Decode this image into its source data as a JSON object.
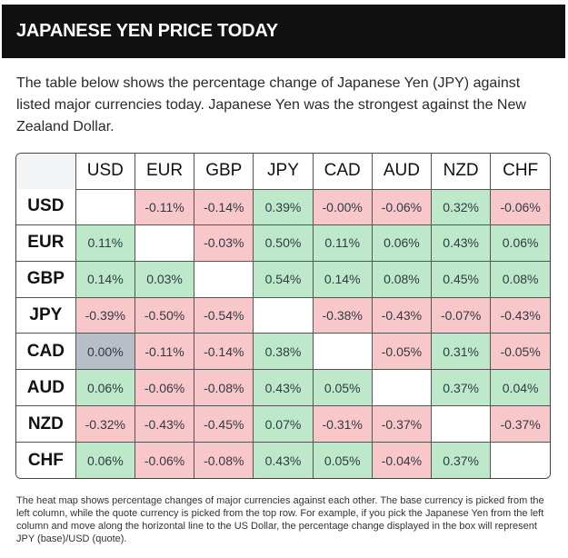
{
  "header": {
    "title": "JAPANESE YEN PRICE TODAY"
  },
  "intro": {
    "text": "The table below shows the percentage change of Japanese Yen (JPY) against listed major currencies today. Japanese Yen was the strongest against the New Zealand Dollar."
  },
  "table": {
    "columns": [
      "USD",
      "EUR",
      "GBP",
      "JPY",
      "CAD",
      "AUD",
      "NZD",
      "CHF"
    ],
    "rows": [
      {
        "label": "USD",
        "cells": [
          "",
          "-0.11%",
          "-0.14%",
          "0.39%",
          "-0.00%",
          "-0.06%",
          "0.32%",
          "-0.06%"
        ]
      },
      {
        "label": "EUR",
        "cells": [
          "0.11%",
          "",
          "-0.03%",
          "0.50%",
          "0.11%",
          "0.06%",
          "0.43%",
          "0.06%"
        ]
      },
      {
        "label": "GBP",
        "cells": [
          "0.14%",
          "0.03%",
          "",
          "0.54%",
          "0.14%",
          "0.08%",
          "0.45%",
          "0.08%"
        ]
      },
      {
        "label": "JPY",
        "cells": [
          "-0.39%",
          "-0.50%",
          "-0.54%",
          "",
          "-0.38%",
          "-0.43%",
          "-0.07%",
          "-0.43%"
        ]
      },
      {
        "label": "CAD",
        "cells": [
          "0.00%",
          "-0.11%",
          "-0.14%",
          "0.38%",
          "",
          "-0.05%",
          "0.31%",
          "-0.05%"
        ]
      },
      {
        "label": "AUD",
        "cells": [
          "0.06%",
          "-0.06%",
          "-0.08%",
          "0.43%",
          "0.05%",
          "",
          "0.37%",
          "0.04%"
        ]
      },
      {
        "label": "NZD",
        "cells": [
          "-0.32%",
          "-0.43%",
          "-0.45%",
          "0.07%",
          "-0.31%",
          "-0.37%",
          "",
          "-0.37%"
        ]
      },
      {
        "label": "CHF",
        "cells": [
          "0.06%",
          "-0.06%",
          "-0.08%",
          "0.43%",
          "0.05%",
          "-0.04%",
          "0.37%",
          ""
        ]
      }
    ]
  },
  "colors": {
    "positive": "#bde8c9",
    "negative": "#f8c7c9",
    "neutral": "#b7bec8"
  },
  "footnote": {
    "text": "The heat map shows percentage changes of major currencies against each other. The base currency is picked from the left column, while the quote currency is picked from the top row. For example, if you pick the Japanese Yen from the left column and move along the horizontal line to the US Dollar, the percentage change displayed in the box will represent JPY (base)/USD (quote)."
  }
}
